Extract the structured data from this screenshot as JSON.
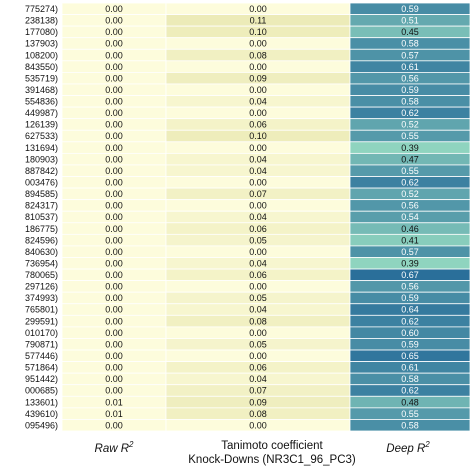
{
  "chart_data": {
    "type": "heatmap",
    "columns": [
      "Raw R",
      "Tanimoto coefficient",
      "Deep R"
    ],
    "column_superscript": "2",
    "xlabel": "Knock-Downs (NR3C1_96_PC3)",
    "rows": [
      {
        "label": "775274)",
        "raw": "0.00",
        "tanimoto": "0.00",
        "deep": "0.59"
      },
      {
        "label": "238138)",
        "raw": "0.00",
        "tanimoto": "0.11",
        "deep": "0.51"
      },
      {
        "label": "177080)",
        "raw": "0.00",
        "tanimoto": "0.10",
        "deep": "0.45"
      },
      {
        "label": "137903)",
        "raw": "0.00",
        "tanimoto": "0.00",
        "deep": "0.58"
      },
      {
        "label": "108200)",
        "raw": "0.00",
        "tanimoto": "0.08",
        "deep": "0.57"
      },
      {
        "label": "843550)",
        "raw": "0.00",
        "tanimoto": "0.00",
        "deep": "0.61"
      },
      {
        "label": "535719)",
        "raw": "0.00",
        "tanimoto": "0.09",
        "deep": "0.56"
      },
      {
        "label": "391468)",
        "raw": "0.00",
        "tanimoto": "0.00",
        "deep": "0.59"
      },
      {
        "label": "554836)",
        "raw": "0.00",
        "tanimoto": "0.04",
        "deep": "0.58"
      },
      {
        "label": "449987)",
        "raw": "0.00",
        "tanimoto": "0.00",
        "deep": "0.62"
      },
      {
        "label": "126139)",
        "raw": "0.00",
        "tanimoto": "0.06",
        "deep": "0.52"
      },
      {
        "label": "627533)",
        "raw": "0.00",
        "tanimoto": "0.10",
        "deep": "0.55"
      },
      {
        "label": "131694)",
        "raw": "0.00",
        "tanimoto": "0.00",
        "deep": "0.39"
      },
      {
        "label": "180903)",
        "raw": "0.00",
        "tanimoto": "0.04",
        "deep": "0.47"
      },
      {
        "label": "887842)",
        "raw": "0.00",
        "tanimoto": "0.04",
        "deep": "0.55"
      },
      {
        "label": "003476)",
        "raw": "0.00",
        "tanimoto": "0.00",
        "deep": "0.62"
      },
      {
        "label": "894585)",
        "raw": "0.00",
        "tanimoto": "0.07",
        "deep": "0.52"
      },
      {
        "label": "824317)",
        "raw": "0.00",
        "tanimoto": "0.00",
        "deep": "0.56"
      },
      {
        "label": "810537)",
        "raw": "0.00",
        "tanimoto": "0.04",
        "deep": "0.54"
      },
      {
        "label": "186775)",
        "raw": "0.00",
        "tanimoto": "0.06",
        "deep": "0.46"
      },
      {
        "label": "824596)",
        "raw": "0.00",
        "tanimoto": "0.05",
        "deep": "0.41"
      },
      {
        "label": "840630)",
        "raw": "0.00",
        "tanimoto": "0.00",
        "deep": "0.57"
      },
      {
        "label": "736954)",
        "raw": "0.00",
        "tanimoto": "0.04",
        "deep": "0.39"
      },
      {
        "label": "780065)",
        "raw": "0.00",
        "tanimoto": "0.06",
        "deep": "0.67"
      },
      {
        "label": "297126)",
        "raw": "0.00",
        "tanimoto": "0.00",
        "deep": "0.56"
      },
      {
        "label": "374993)",
        "raw": "0.00",
        "tanimoto": "0.05",
        "deep": "0.59"
      },
      {
        "label": "765801)",
        "raw": "0.00",
        "tanimoto": "0.04",
        "deep": "0.64"
      },
      {
        "label": "299591)",
        "raw": "0.00",
        "tanimoto": "0.08",
        "deep": "0.62"
      },
      {
        "label": "010170)",
        "raw": "0.00",
        "tanimoto": "0.00",
        "deep": "0.60"
      },
      {
        "label": "790871)",
        "raw": "0.00",
        "tanimoto": "0.05",
        "deep": "0.59"
      },
      {
        "label": "577446)",
        "raw": "0.00",
        "tanimoto": "0.00",
        "deep": "0.65"
      },
      {
        "label": "571864)",
        "raw": "0.00",
        "tanimoto": "0.06",
        "deep": "0.61"
      },
      {
        "label": "951442)",
        "raw": "0.00",
        "tanimoto": "0.04",
        "deep": "0.58"
      },
      {
        "label": "000685)",
        "raw": "0.00",
        "tanimoto": "0.07",
        "deep": "0.62"
      },
      {
        "label": "133601)",
        "raw": "0.01",
        "tanimoto": "0.09",
        "deep": "0.48"
      },
      {
        "label": "439610)",
        "raw": "0.01",
        "tanimoto": "0.08",
        "deep": "0.55"
      },
      {
        "label": "095496)",
        "raw": "0.00",
        "tanimoto": "0.00",
        "deep": "0.58"
      }
    ],
    "colors": {
      "raw_cell": "#fdfcdc",
      "tanimoto_low": "#fdfcdc",
      "tanimoto_high": "#ecebb8",
      "deep_low": "#8fd4bf",
      "deep_high": "#2a6f9a",
      "text_dark": "#111111",
      "text_light": "#ffffff"
    }
  }
}
